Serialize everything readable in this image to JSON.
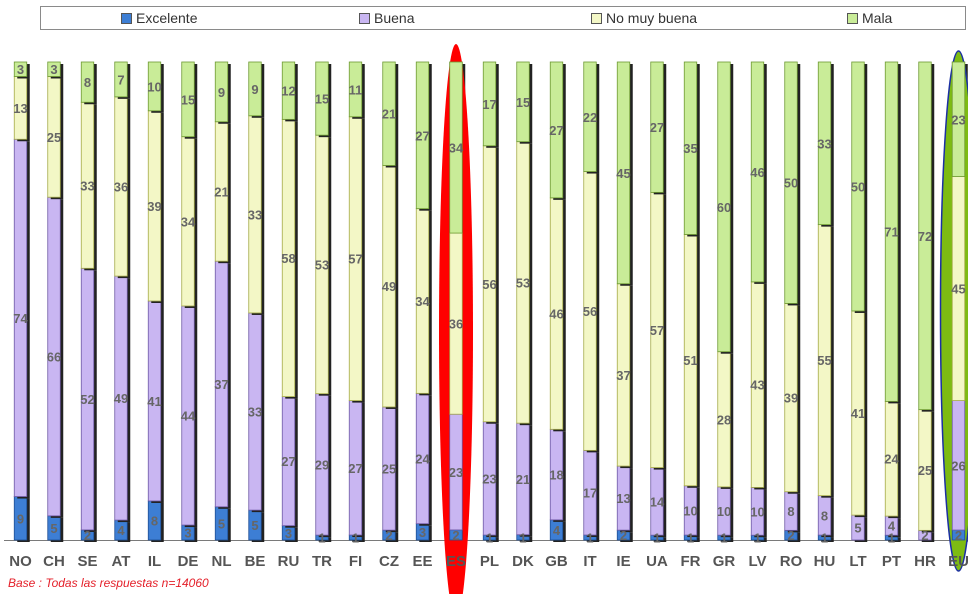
{
  "chart_data": {
    "type": "bar",
    "stacked": "percent",
    "categories": [
      "NO",
      "CH",
      "SE",
      "AT",
      "IL",
      "DE",
      "NL",
      "BE",
      "RU",
      "TR",
      "FI",
      "CZ",
      "EE",
      "ES",
      "PL",
      "DK",
      "GB",
      "IT",
      "IE",
      "UA",
      "FR",
      "GR",
      "LV",
      "RO",
      "HU",
      "LT",
      "PT",
      "HR",
      "EU"
    ],
    "series": [
      {
        "name": "Excelente",
        "color": "#3d7ed4",
        "values": [
          9,
          5,
          2,
          4,
          8,
          3,
          5,
          5,
          3,
          1,
          1,
          2,
          3,
          2,
          1,
          1,
          4,
          1,
          2,
          1,
          1,
          1,
          1,
          2,
          1,
          0,
          1,
          0,
          2
        ],
        "labels": [
          "9",
          "5",
          "2",
          "4",
          "8",
          "3",
          "5",
          "5",
          "3",
          "1",
          "1",
          "2",
          "3",
          "2",
          "1",
          "1",
          "4",
          "1",
          "2",
          "1",
          "1",
          "1",
          "1",
          "2",
          "1",
          "",
          "1",
          "",
          "2"
        ]
      },
      {
        "name": "Buena",
        "color": "#c9b6f2",
        "values": [
          74,
          66,
          52,
          49,
          41,
          44,
          37,
          33,
          27,
          29,
          27,
          25,
          24,
          23,
          23,
          21,
          18,
          17,
          13,
          14,
          10,
          10,
          10,
          8,
          8,
          5,
          4,
          2,
          26
        ],
        "labels": [
          "74",
          "66",
          "52",
          "49",
          "41",
          "44",
          "37",
          "33",
          "27",
          "29",
          "27",
          "25",
          "24",
          "23",
          "23",
          "21",
          "18",
          "17",
          "13",
          "14",
          "10",
          "10",
          "10",
          "8",
          "8",
          "5",
          "4",
          "2",
          "26"
        ]
      },
      {
        "name": "No muy buena",
        "color": "#f3f7c6",
        "values": [
          13,
          25,
          33,
          36,
          39,
          34,
          21,
          33,
          58,
          53,
          57,
          49,
          34,
          36,
          56,
          53,
          46,
          56,
          37,
          57,
          51,
          28,
          43,
          39,
          55,
          41,
          24,
          25,
          45
        ],
        "labels": [
          "13",
          "25",
          "33",
          "36",
          "39",
          "34",
          "21",
          "33",
          "58",
          "53",
          "57",
          "49",
          "34",
          "36",
          "56",
          "53",
          "46",
          "56",
          "37",
          "57",
          "51",
          "28",
          "43",
          "39",
          "55",
          "41",
          "24",
          "25",
          "45"
        ]
      },
      {
        "name": "Mala",
        "color": "#c9ec98",
        "values": [
          3,
          3,
          8,
          7,
          10,
          15,
          9,
          9,
          12,
          15,
          11,
          21,
          27,
          34,
          17,
          15,
          27,
          22,
          45,
          27,
          35,
          60,
          46,
          50,
          33,
          50,
          71,
          72,
          23
        ],
        "labels": [
          "3",
          "3",
          "8",
          "7",
          "10",
          "15",
          "9",
          "9",
          "12",
          "15",
          "11",
          "21",
          "27",
          "34",
          "17",
          "15",
          "27",
          "22",
          "45",
          "27",
          "35",
          "60",
          "46",
          "50",
          "33",
          "50",
          "71",
          "72",
          "23"
        ]
      }
    ],
    "highlighted": {
      "ES": "#ff0000",
      "EU": "#7dbb12"
    },
    "legend_placement": "top",
    "grid": false
  },
  "footnote": "Base : Todas las respuestas  n=14060"
}
